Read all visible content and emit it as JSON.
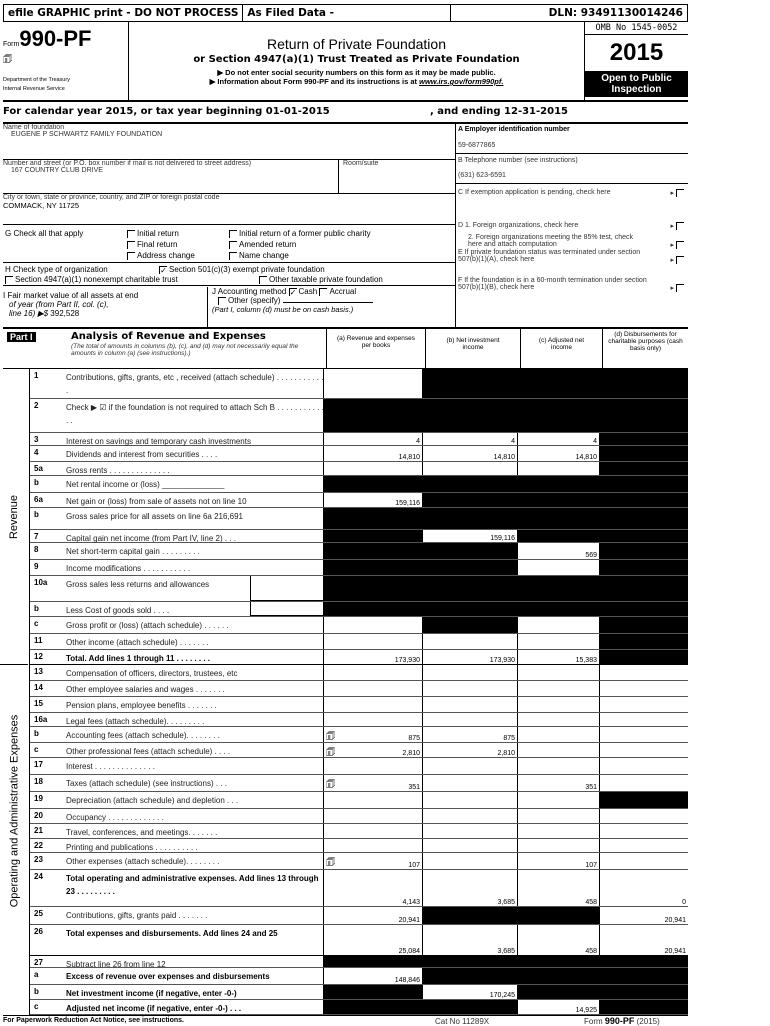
{
  "topbar": {
    "efile": "efile GRAPHIC print - DO NOT PROCESS",
    "as_filed": "As Filed Data -",
    "dln": "DLN: 93491130014246"
  },
  "form": {
    "form_word": "Form",
    "form_number": "990-PF",
    "dept1": "Department of the Treasury",
    "dept2": "Internal Revenue Service",
    "title": "Return of Private Foundation",
    "subtitle": "or Section 4947(a)(1) Trust Treated as Private Foundation",
    "note1": "▶ Do not enter social security numbers on this form as it may be made public.",
    "note2": "▶ Information about Form 990-PF and its instructions is at ",
    "note2_link": "www.irs.gov/form990pf.",
    "omb": "OMB No 1545-0052",
    "year": "2015",
    "open": "Open to Public Inspection"
  },
  "calendar": {
    "begin": "For calendar year 2015, or tax year beginning 01-01-2015",
    "end": ", and ending 12-31-2015"
  },
  "org": {
    "name_label": "Name of foundation",
    "name": "EUGENE P SCHWARTZ FAMILY FOUNDATION",
    "street_label": "Number and street (or P.O. box number if mail is not delivered to street address)",
    "room_label": "Room/suite",
    "street": "167 COUNTRY CLUB DRIVE",
    "city_label": "City or town, state or province, country, and ZIP or foreign postal code",
    "city": "COMMACK, NY  11725",
    "ein_label": "A Employer identification number",
    "ein": "59-6877865",
    "phone_label": "B Telephone number (see instructions)",
    "phone": "(631) 623-6591",
    "c_label": "C If exemption application is pending, check here",
    "d1_label": "D 1. Foreign organizations, check here",
    "d2_label": "2. Foreign organizations meeting the 85% test, check here and attach computation",
    "e_label": "E If private foundation status was terminated under section 507(b)(1)(A), check here",
    "f_label": "F If the foundation is in a 60-month termination under section 507(b)(1)(B), check here"
  },
  "g": {
    "label": "G Check all that apply",
    "opts": [
      "Initial return",
      "Initial return of a former public charity",
      "Final return",
      "Amended return",
      "Address change",
      "Name change"
    ]
  },
  "h": {
    "label": "H Check type of organization",
    "opt1": "Section 501(c)(3) exempt private foundation",
    "opt2": "Section 4947(a)(1) nonexempt charitable trust",
    "opt3": "Other taxable private foundation"
  },
  "i": {
    "line1": "I Fair market value of all assets at end",
    "line2": "of year (from Part II, col. (c),",
    "line3": "line 16) ▶$",
    "value": "392,528"
  },
  "j": {
    "label": "J Accounting method",
    "cash": "Cash",
    "accrual": "Accrual",
    "other": "Other (specify)",
    "note": "(Part I, column (d) must be on cash basis.)"
  },
  "part1": {
    "tag": "Part I",
    "title": "Analysis of Revenue and Expenses",
    "desc": "(The total of amounts in columns (b), (c), and (d) may not necessarily equal the amounts in column (a) (see instructions).)",
    "col_a": "(a)  Revenue and expenses per books",
    "col_b": "(b)  Net investment income",
    "col_c": "(c)  Adjusted net income",
    "col_d": "(d) Disbursements for charitable purposes (cash basis only)",
    "side_revenue": "Revenue",
    "side_expenses": "Operating and Administrative Expenses"
  },
  "lines": [
    {
      "num": "1",
      "label": "Contributions, gifts, grants, etc , received (attach schedule)  . . . . . . . . . . . .",
      "a": "",
      "b": "",
      "c": "",
      "d": ""
    },
    {
      "num": "2",
      "label": "Check ▶ ☑ if the foundation is not required to attach Sch B  . . . . . . . . . . . . .",
      "a": "",
      "b": "",
      "c": "",
      "d": ""
    },
    {
      "num": "3",
      "label": "Interest on savings and temporary cash investments",
      "a": "4",
      "b": "4",
      "c": "4",
      "d": ""
    },
    {
      "num": "4",
      "label": "Dividends and interest from securities   . . . .",
      "a": "14,810",
      "b": "14,810",
      "c": "14,810",
      "d": ""
    },
    {
      "num": "5a",
      "label": "Gross rents . . . . . . . . . . . . . .",
      "a": "",
      "b": "",
      "c": "",
      "d": ""
    },
    {
      "num": "b",
      "label": "Net rental income or (loss) ______________",
      "a": "",
      "b": "",
      "c": "",
      "d": ""
    },
    {
      "num": "6a",
      "label": "Net gain or (loss) from sale of assets not on line 10",
      "a": "159,116",
      "b": "",
      "c": "",
      "d": ""
    },
    {
      "num": "b",
      "label": "Gross sales price for all assets on line 6a  216,691",
      "a": "",
      "b": "",
      "c": "",
      "d": ""
    },
    {
      "num": "7",
      "label": "Capital gain net income (from Part IV, line 2) . . .",
      "a": "",
      "b": "159,116",
      "c": "",
      "d": ""
    },
    {
      "num": "8",
      "label": "Net short-term capital gain . . . . . . . . .",
      "a": "",
      "b": "",
      "c": "569",
      "d": ""
    },
    {
      "num": "9",
      "label": "Income modifications . . . . . . . . . . .",
      "a": "",
      "b": "",
      "c": "",
      "d": ""
    },
    {
      "num": "10a",
      "label": "Gross sales less returns and allowances",
      "a": "",
      "b": "",
      "c": "",
      "d": ""
    },
    {
      "num": "b",
      "label": "Less  Cost of goods sold . . . .",
      "a": "",
      "b": "",
      "c": "",
      "d": ""
    },
    {
      "num": "c",
      "label": "Gross profit or (loss) (attach schedule) . . . . . .",
      "a": "",
      "b": "",
      "c": "",
      "d": ""
    },
    {
      "num": "11",
      "label": "Other income (attach schedule)  . . . . . . .",
      "a": "",
      "b": "",
      "c": "",
      "d": ""
    },
    {
      "num": "12",
      "label": "Total. Add lines 1 through 11  . . . . . . . .",
      "a": "173,930",
      "b": "173,930",
      "c": "15,383",
      "d": ""
    },
    {
      "num": "13",
      "label": "Compensation of officers, directors, trustees, etc",
      "a": "",
      "b": "",
      "c": "",
      "d": ""
    },
    {
      "num": "14",
      "label": "Other employee salaries and wages  . . . . . . .",
      "a": "",
      "b": "",
      "c": "",
      "d": ""
    },
    {
      "num": "15",
      "label": "Pension plans, employee benefits . . . . . . .",
      "a": "",
      "b": "",
      "c": "",
      "d": ""
    },
    {
      "num": "16a",
      "label": "Legal fees (attach schedule). . . . . . . . .",
      "a": "",
      "b": "",
      "c": "",
      "d": ""
    },
    {
      "num": "b",
      "label": "Accounting fees (attach schedule). . . . . . . .",
      "a": "875",
      "b": "875",
      "c": "",
      "d": ""
    },
    {
      "num": "c",
      "label": "Other professional fees (attach schedule)  . . . .",
      "a": "2,810",
      "b": "2,810",
      "c": "",
      "d": ""
    },
    {
      "num": "17",
      "label": "Interest  . . . . . . . . . . . . . .",
      "a": "",
      "b": "",
      "c": "",
      "d": ""
    },
    {
      "num": "18",
      "label": "Taxes (attach schedule) (see instructions)   . . .",
      "a": "351",
      "b": "",
      "c": "351",
      "d": ""
    },
    {
      "num": "19",
      "label": "Depreciation (attach schedule) and depletion . . .",
      "a": "",
      "b": "",
      "c": "",
      "d": ""
    },
    {
      "num": "20",
      "label": "Occupancy  . . . . . . . . . . . . .",
      "a": "",
      "b": "",
      "c": "",
      "d": ""
    },
    {
      "num": "21",
      "label": "Travel, conferences, and meetings. . . . . . .",
      "a": "",
      "b": "",
      "c": "",
      "d": ""
    },
    {
      "num": "22",
      "label": "Printing and publications . . . . . . . . . .",
      "a": "",
      "b": "",
      "c": "",
      "d": ""
    },
    {
      "num": "23",
      "label": "Other expenses (attach schedule). . . . . . . .",
      "a": "107",
      "b": "",
      "c": "107",
      "d": ""
    },
    {
      "num": "24",
      "label": "Total operating and administrative expenses. Add lines 13 through 23 . . . . . . . . .",
      "a": "4,143",
      "b": "3,685",
      "c": "458",
      "d": "0"
    },
    {
      "num": "25",
      "label": "Contributions, gifts, grants paid  . . . . . . .",
      "a": "20,941",
      "b": "",
      "c": "",
      "d": "20,941"
    },
    {
      "num": "26",
      "label": "Total expenses and disbursements. Add lines 24 and 25",
      "a": "25,084",
      "b": "3,685",
      "c": "458",
      "d": "20,941"
    },
    {
      "num": "27",
      "label": "Subtract line 26 from line 12",
      "a": "",
      "b": "",
      "c": "",
      "d": ""
    },
    {
      "num": "a",
      "label": "Excess of revenue over expenses and disbursements",
      "a": "148,846",
      "b": "",
      "c": "",
      "d": ""
    },
    {
      "num": "b",
      "label": "Net investment income (if negative, enter -0-)",
      "a": "",
      "b": "170,245",
      "c": "",
      "d": ""
    },
    {
      "num": "c",
      "label": "Adjusted net income (if negative, enter -0-)   . . .",
      "a": "",
      "b": "",
      "c": "14,925",
      "d": ""
    }
  ],
  "footer": {
    "left": "For Paperwork Reduction Act Notice, see instructions.",
    "cat": "Cat No 11289X",
    "form_ref_pre": "Form ",
    "form_ref": "990-PF",
    "form_ref_post": " (2015)"
  },
  "icons": {
    "attachment": "attachment-icon",
    "checkbox": "checkbox-icon"
  }
}
